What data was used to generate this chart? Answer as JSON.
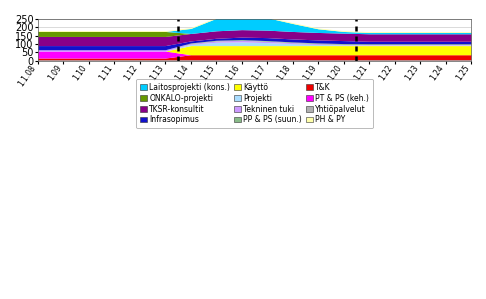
{
  "x_labels": [
    "1.1.08",
    "1.09",
    "1.10",
    "1.11",
    "1.12",
    "1.13",
    "1.14",
    "1.15",
    "1.16",
    "1.17",
    "1.18",
    "1.19",
    "1.20",
    "1.21",
    "1.22",
    "1.23",
    "1.24",
    "1.25"
  ],
  "x_values": [
    0,
    1,
    2,
    3,
    4,
    5,
    6,
    7,
    8,
    9,
    10,
    11,
    12,
    13,
    14,
    15,
    16,
    17
  ],
  "vlines_x": [
    5.5,
    12.5
  ],
  "ylim": [
    0,
    250
  ],
  "yticks": [
    0,
    50,
    100,
    150,
    200,
    250
  ],
  "series": [
    {
      "name": "Yhtiöpalvelut",
      "color": "#b0b0b0",
      "values": [
        5,
        5,
        5,
        5,
        5,
        5,
        5,
        5,
        5,
        5,
        5,
        5,
        5,
        5,
        5,
        5,
        5,
        5
      ]
    },
    {
      "name": "T&K",
      "color": "#ee0000",
      "values": [
        10,
        10,
        10,
        10,
        10,
        10,
        30,
        30,
        30,
        30,
        30,
        30,
        30,
        30,
        30,
        30,
        30,
        30
      ]
    },
    {
      "name": "PT & PS (keh.)",
      "color": "#ff00ff",
      "values": [
        42,
        42,
        42,
        42,
        42,
        42,
        0,
        0,
        0,
        0,
        0,
        0,
        0,
        0,
        0,
        0,
        0,
        0
      ]
    },
    {
      "name": "Käyttö",
      "color": "#ffff00",
      "values": [
        0,
        0,
        0,
        0,
        0,
        0,
        55,
        55,
        55,
        55,
        55,
        55,
        55,
        55,
        55,
        55,
        55,
        55
      ]
    },
    {
      "name": "Projekti",
      "color": "#aaddff",
      "values": [
        0,
        0,
        0,
        0,
        0,
        0,
        8,
        20,
        22,
        18,
        12,
        7,
        4,
        3,
        3,
        3,
        3,
        3
      ]
    },
    {
      "name": "Tekninen tuki",
      "color": "#cc99ff",
      "values": [
        8,
        8,
        8,
        8,
        8,
        8,
        5,
        8,
        10,
        8,
        6,
        5,
        4,
        4,
        4,
        4,
        4,
        4
      ]
    },
    {
      "name": "PP & PS (suun.)",
      "color": "#88bb88",
      "values": [
        0,
        0,
        0,
        0,
        0,
        0,
        3,
        4,
        4,
        4,
        4,
        4,
        4,
        4,
        4,
        4,
        4,
        4
      ]
    },
    {
      "name": "Infrasopimus",
      "color": "#1111cc",
      "values": [
        25,
        25,
        25,
        25,
        25,
        25,
        12,
        12,
        15,
        18,
        18,
        18,
        18,
        15,
        15,
        15,
        15,
        15
      ]
    },
    {
      "name": "TKSR-konsultit",
      "color": "#880088",
      "values": [
        55,
        55,
        55,
        55,
        55,
        55,
        45,
        45,
        45,
        45,
        45,
        45,
        45,
        45,
        45,
        45,
        45,
        45
      ]
    },
    {
      "name": "ONKALO-projekti",
      "color": "#669900",
      "values": [
        30,
        30,
        30,
        30,
        30,
        30,
        0,
        0,
        0,
        0,
        0,
        0,
        0,
        0,
        0,
        0,
        0,
        0
      ]
    },
    {
      "name": "Laitosprojekti (kons.)",
      "color": "#00ccff",
      "values": [
        0,
        0,
        0,
        0,
        0,
        0,
        30,
        75,
        95,
        75,
        48,
        22,
        10,
        8,
        8,
        8,
        8,
        8
      ]
    },
    {
      "name": "PH & PY",
      "color": "#ffffaa",
      "values": [
        5,
        5,
        5,
        5,
        5,
        5,
        5,
        5,
        5,
        5,
        5,
        5,
        5,
        5,
        5,
        5,
        5,
        5
      ]
    }
  ],
  "legend_order": [
    "Laitosprojekti (kons.)",
    "ONKALO-projekti",
    "TKSR-konsultit",
    "Infrasopimus",
    "Käyttö",
    "Projekti",
    "Tekninen tuki",
    "PP & PS (suun.)",
    "T&K",
    "PT & PS (keh.)",
    "Yhtiöpalvelut",
    "PH & PY"
  ],
  "background_color": "#ffffff",
  "grid_color": "#cccccc"
}
